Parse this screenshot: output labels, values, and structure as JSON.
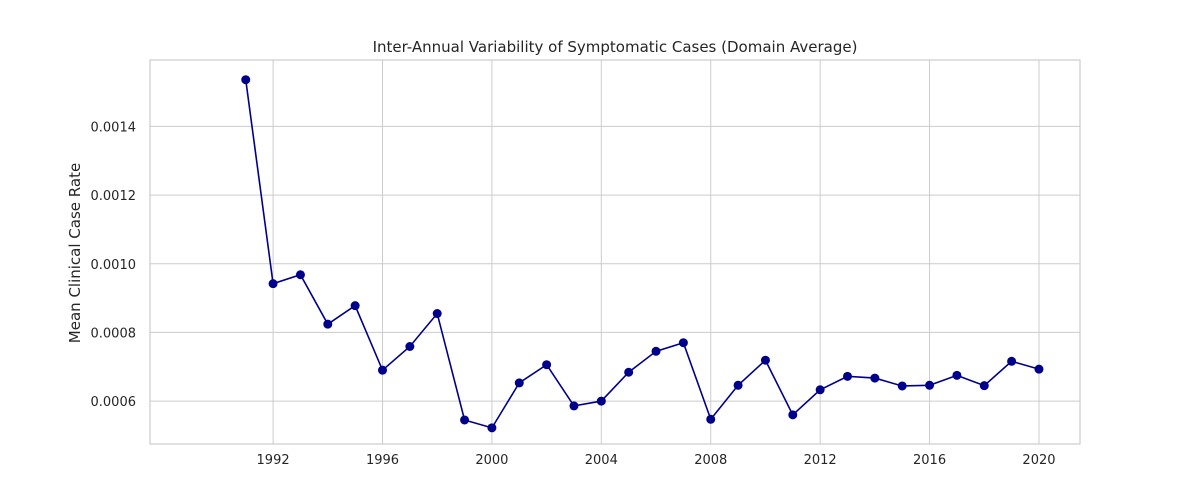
{
  "chart_data": {
    "type": "line",
    "title": "Inter-Annual Variability of Symptomatic Cases (Domain Average)",
    "xlabel": "",
    "ylabel": "Mean Clinical Case Rate",
    "xlim": [
      1987.5,
      2021.5
    ],
    "ylim": [
      0.000475,
      0.0015935
    ],
    "x_ticks": [
      1992,
      1996,
      2000,
      2004,
      2008,
      2012,
      2016,
      2020
    ],
    "y_ticks": [
      0.0006,
      0.0008,
      0.001,
      0.0012,
      0.0014
    ],
    "grid": true,
    "colors": {
      "line": "#00008b",
      "marker": "#00008b",
      "grid": "#cccccc"
    },
    "series": [
      {
        "name": "",
        "x": [
          1991,
          1992,
          1993,
          1994,
          1995,
          1996,
          1997,
          1998,
          1999,
          2000,
          2001,
          2002,
          2003,
          2004,
          2005,
          2006,
          2007,
          2008,
          2009,
          2010,
          2011,
          2012,
          2013,
          2014,
          2015,
          2016,
          2017,
          2018,
          2019,
          2020
        ],
        "values": [
          0.001536,
          0.000942,
          0.000968,
          0.000824,
          0.000878,
          0.00069,
          0.000759,
          0.000855,
          0.000545,
          0.000522,
          0.000653,
          0.000706,
          0.000586,
          0.0006,
          0.000684,
          0.000745,
          0.00077,
          0.000547,
          0.000646,
          0.000719,
          0.00056,
          0.000633,
          0.000672,
          0.000667,
          0.000644,
          0.000646,
          0.000675,
          0.000645,
          0.000716,
          0.000693
        ]
      }
    ]
  }
}
